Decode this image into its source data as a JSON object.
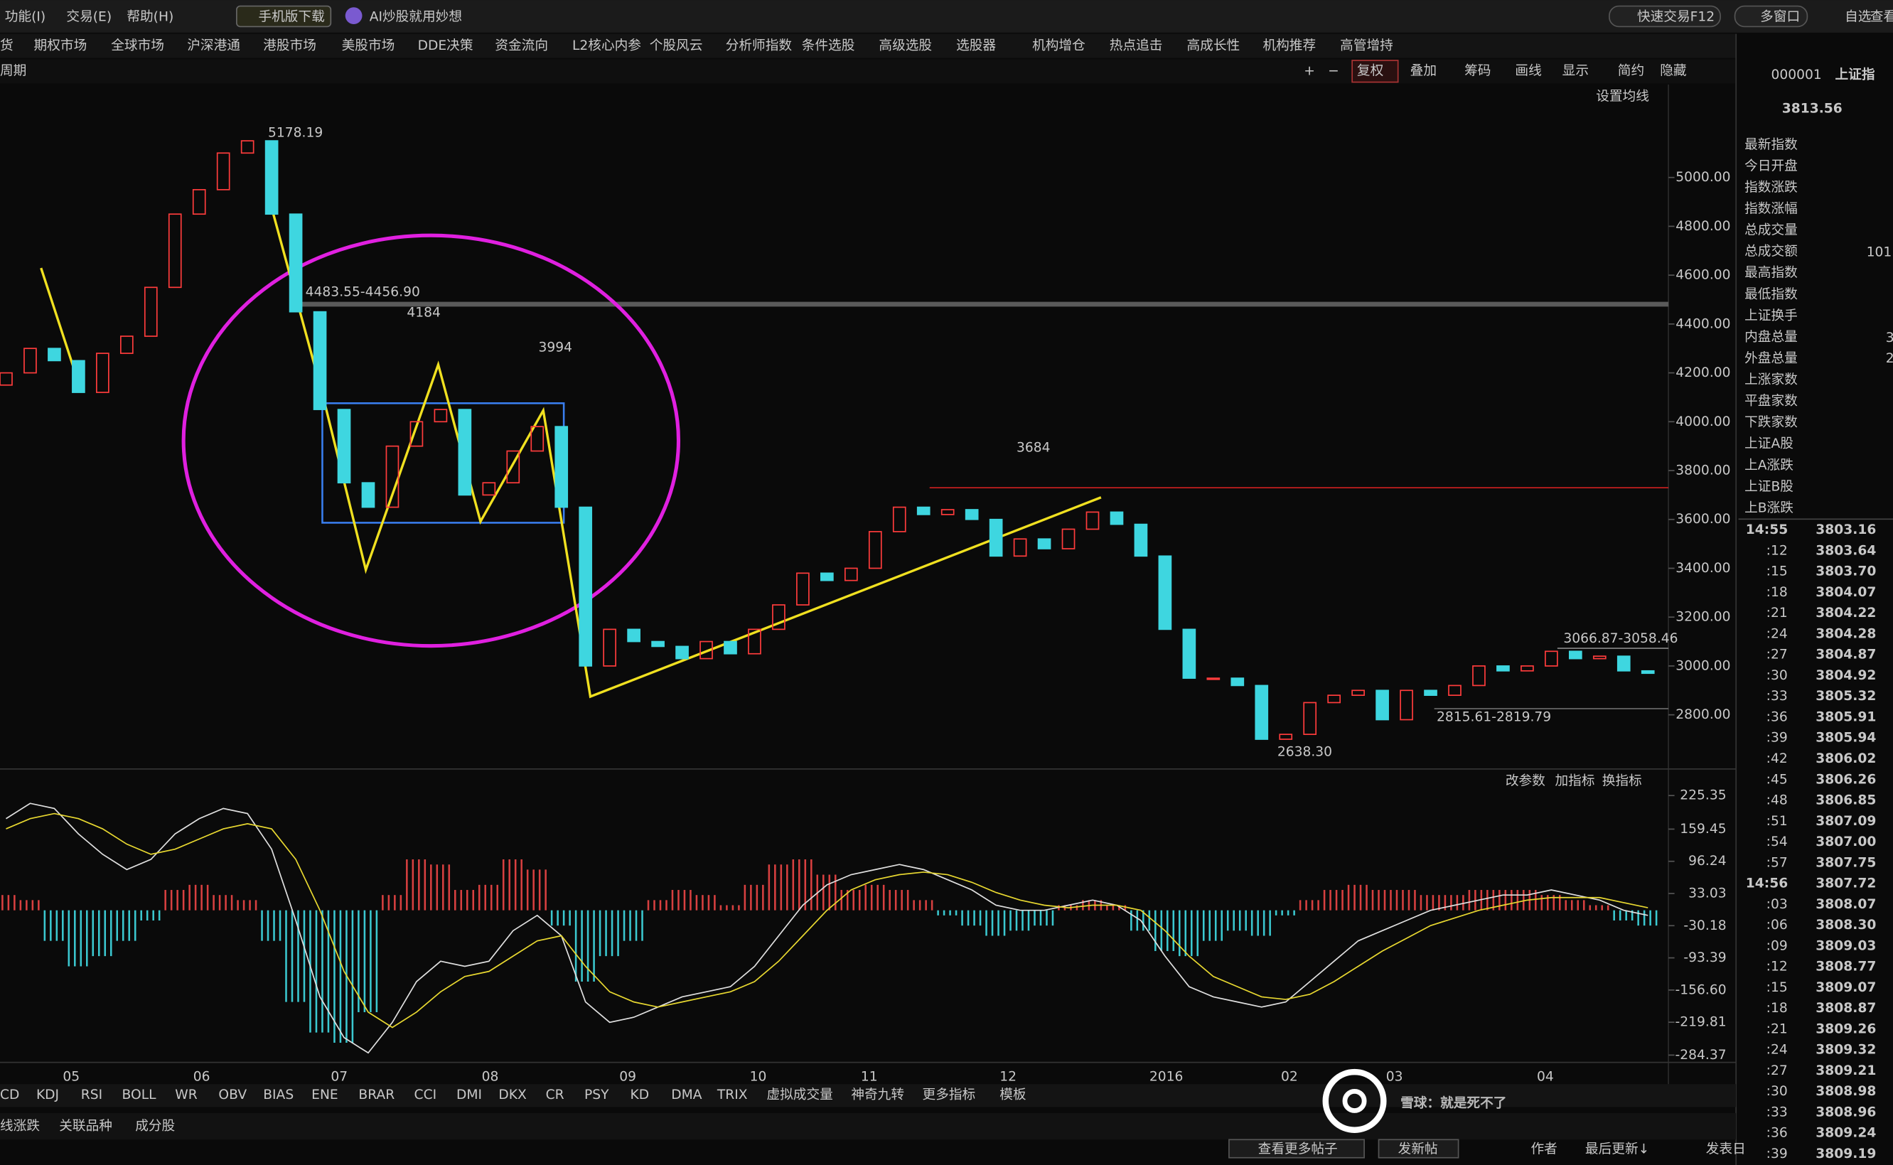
{
  "menu": {
    "items": [
      "功能(I)",
      "交易(E)",
      "帮助(H)"
    ],
    "mobile": "手机版下载",
    "ai": "AI炒股就用妙想",
    "quick_trade": "快速交易F12",
    "multi_window": "多窗口",
    "watchlist": "自选",
    "view": "查看"
  },
  "nav": [
    "货",
    "期权市场",
    "全球市场",
    "沪深港通",
    "港股市场",
    "美股市场",
    "DDE决策",
    "资金流向",
    "L2核心内参",
    "个股风云",
    "分析师指数",
    "条件选股",
    "高级选股",
    "选股器",
    "机构增仓",
    "热点追击",
    "高成长性",
    "机构推荐",
    "高管增持"
  ],
  "toolbar": {
    "period": "周期",
    "plus": "+",
    "minus": "−",
    "items": [
      "复权",
      "叠加",
      "筹码",
      "画线",
      "显示",
      "简约",
      "隐藏"
    ],
    "ma_setting": "设置均线"
  },
  "chart_data": [
    {
      "type": "candlestick",
      "months": [
        "05",
        "06",
        "07",
        "08",
        "09",
        "10",
        "11",
        "12",
        "2016",
        "02",
        "03",
        "04"
      ],
      "open": [
        4150,
        4200,
        4300,
        4250,
        4120,
        4280,
        4350,
        4550,
        4850,
        4950,
        5100,
        5150,
        4850,
        4450,
        4050,
        3750,
        3650,
        3900,
        4000,
        4050,
        3700,
        3750,
        3880,
        3980,
        3650,
        3000,
        3150,
        3100,
        3080,
        3030,
        3100,
        3050,
        3150,
        3250,
        3380,
        3350,
        3400,
        3550,
        3650,
        3620,
        3640,
        3600,
        3450,
        3520,
        3480,
        3560,
        3630,
        3580,
        3450,
        3150,
        2950,
        2950,
        2920,
        2700,
        2720,
        2850,
        2880,
        2900,
        2780,
        2900,
        2880,
        2920,
        3000,
        2980,
        3000,
        3060,
        3030,
        3040,
        2980
      ],
      "close": [
        4200,
        4300,
        4250,
        4120,
        4280,
        4350,
        4550,
        4850,
        4950,
        5100,
        5150,
        4850,
        4450,
        4050,
        3750,
        3650,
        3900,
        4000,
        4050,
        3700,
        3750,
        3880,
        3980,
        3650,
        3000,
        3150,
        3100,
        3080,
        3030,
        3100,
        3050,
        3150,
        3250,
        3380,
        3350,
        3400,
        3550,
        3650,
        3620,
        3640,
        3600,
        3450,
        3520,
        3480,
        3560,
        3630,
        3580,
        3450,
        3150,
        2950,
        2950,
        2920,
        2700,
        2720,
        2850,
        2880,
        2900,
        2780,
        2900,
        2880,
        2920,
        3000,
        2980,
        3000,
        3060,
        3030,
        3040,
        2980,
        2970
      ],
      "ylim": [
        2588,
        5331
      ],
      "yticks": [
        {
          "value": 2800,
          "label": "2800.00"
        },
        {
          "value": 3000,
          "label": "3000.00"
        },
        {
          "value": 3200,
          "label": "3200.00"
        },
        {
          "value": 3400,
          "label": "3400.00"
        },
        {
          "value": 3600,
          "label": "3600.00"
        },
        {
          "value": 3800,
          "label": "3800.00"
        },
        {
          "value": 4000,
          "label": "4000.00"
        },
        {
          "value": 4200,
          "label": "4200.00"
        },
        {
          "value": 4400,
          "label": "4400.00"
        },
        {
          "value": 4600,
          "label": "4600.00"
        },
        {
          "value": 4800,
          "label": "4800.00"
        },
        {
          "value": 5000,
          "label": "5000.00"
        }
      ],
      "up_color": "#ff3c3c",
      "down_color": "#3ed6e0",
      "annotations": [
        "4184",
        "3994",
        "3684"
      ],
      "marks": [
        "5178.19",
        "4483.55-4456.90",
        "3066.87-3058.46",
        "2815.61-2819.79",
        "2638.30"
      ]
    },
    {
      "type": "macd",
      "header": [
        "改参数",
        "加指标",
        "换指标"
      ],
      "histogram": [
        30,
        20,
        -60,
        -110,
        -90,
        -60,
        -20,
        40,
        50,
        30,
        20,
        -60,
        -180,
        -240,
        -260,
        -200,
        30,
        100,
        90,
        40,
        50,
        100,
        80,
        -30,
        -140,
        -90,
        -60,
        20,
        40,
        30,
        10,
        50,
        90,
        100,
        70,
        40,
        50,
        40,
        20,
        -10,
        -30,
        -50,
        -40,
        -30,
        10,
        20,
        10,
        -40,
        -80,
        -90,
        -60,
        -40,
        -50,
        -10,
        20,
        40,
        50,
        40,
        40,
        30,
        30,
        40,
        40,
        40,
        30,
        20,
        10,
        -20,
        -30
      ],
      "series": [
        {
          "name": "DIF",
          "color": "#e0e0e0",
          "values": [
            180,
            210,
            200,
            150,
            110,
            80,
            100,
            150,
            180,
            200,
            190,
            120,
            -20,
            -170,
            -250,
            -280,
            -220,
            -140,
            -100,
            -110,
            -100,
            -40,
            -10,
            -50,
            -180,
            -220,
            -210,
            -190,
            -170,
            -160,
            -150,
            -110,
            -50,
            10,
            50,
            70,
            80,
            90,
            80,
            60,
            40,
            10,
            0,
            0,
            10,
            20,
            10,
            -20,
            -90,
            -150,
            -170,
            -180,
            -190,
            -180,
            -140,
            -100,
            -60,
            -40,
            -20,
            0,
            10,
            20,
            30,
            30,
            40,
            30,
            20,
            0,
            -10
          ]
        },
        {
          "name": "DEA",
          "color": "#e8d830",
          "values": [
            160,
            180,
            190,
            180,
            160,
            130,
            110,
            120,
            140,
            160,
            170,
            160,
            100,
            0,
            -120,
            -200,
            -230,
            -200,
            -160,
            -130,
            -120,
            -90,
            -60,
            -50,
            -110,
            -160,
            -180,
            -190,
            -180,
            -170,
            -160,
            -140,
            -100,
            -50,
            0,
            40,
            60,
            70,
            75,
            70,
            55,
            35,
            20,
            10,
            5,
            10,
            10,
            0,
            -40,
            -90,
            -130,
            -150,
            -170,
            -175,
            -165,
            -140,
            -110,
            -80,
            -55,
            -30,
            -15,
            0,
            10,
            20,
            25,
            25,
            25,
            15,
            5
          ]
        }
      ],
      "up_color": "#d84040",
      "down_color": "#3bc8d0",
      "ylim": [
        -298.6,
        234.8
      ],
      "yticks": [
        -284.37,
        -219.81,
        {
          "value": -156.6,
          "label": "-156.60"
        },
        -93.39,
        -30.18,
        33.03,
        96.24,
        159.45,
        225.35
      ]
    }
  ],
  "indicator_tabs": [
    "CD",
    "KDJ",
    "RSI",
    "BOLL",
    "WR",
    "OBV",
    "BIAS",
    "ENE",
    "BRAR",
    "CCI",
    "DMI",
    "DKX",
    "CR",
    "PSY",
    "KD",
    "DMA",
    "TRIX",
    "虚拟成交量",
    "神奇九转",
    "更多指标",
    "模板"
  ],
  "bottom": {
    "tabs": [
      "线涨跌",
      "关联品种",
      "成分股"
    ],
    "more_posts": "查看更多帖子",
    "new_post": "发新帖",
    "author": "作者",
    "last_update": "最后更新↓",
    "post_date": "发表日"
  },
  "quote": {
    "code": "000001",
    "name": "上证指",
    "price": "3813.56",
    "labels": [
      "最新指数",
      "今日开盘",
      "指数涨跌",
      "指数涨幅",
      "总成交量",
      "总成交额",
      "最高指数",
      "最低指数",
      "上证换手",
      "内盘总量",
      "外盘总量",
      "上涨家数",
      "平盘家数",
      "下跌家数",
      "上证A股",
      "上A涨跌",
      "上证B股",
      "上B涨跌"
    ],
    "partial_values": [
      "101",
      "3",
      "2"
    ],
    "ticks": [
      [
        "14:55",
        "3803.16"
      ],
      [
        ":12",
        "3803.64"
      ],
      [
        ":15",
        "3803.70"
      ],
      [
        ":18",
        "3804.07"
      ],
      [
        ":21",
        "3804.22"
      ],
      [
        ":24",
        "3804.28"
      ],
      [
        ":27",
        "3804.87"
      ],
      [
        ":30",
        "3804.92"
      ],
      [
        ":33",
        "3805.32"
      ],
      [
        ":36",
        "3805.91"
      ],
      [
        ":39",
        "3805.94"
      ],
      [
        ":42",
        "3806.02"
      ],
      [
        ":45",
        "3806.26"
      ],
      [
        ":48",
        "3806.85"
      ],
      [
        ":51",
        "3807.09"
      ],
      [
        ":54",
        "3807.00"
      ],
      [
        ":57",
        "3807.75"
      ],
      [
        "14:56",
        "3807.72"
      ],
      [
        ":03",
        "3808.07"
      ],
      [
        ":06",
        "3808.30"
      ],
      [
        ":09",
        "3809.03"
      ],
      [
        ":12",
        "3808.77"
      ],
      [
        ":15",
        "3809.07"
      ],
      [
        ":18",
        "3808.87"
      ],
      [
        ":21",
        "3809.26"
      ],
      [
        ":24",
        "3809.32"
      ],
      [
        ":27",
        "3809.21"
      ],
      [
        ":30",
        "3808.98"
      ],
      [
        ":33",
        "3808.96"
      ],
      [
        ":36",
        "3809.24"
      ],
      [
        ":39",
        "3809.19"
      ]
    ]
  },
  "watermark": "雪球：就是死不了"
}
